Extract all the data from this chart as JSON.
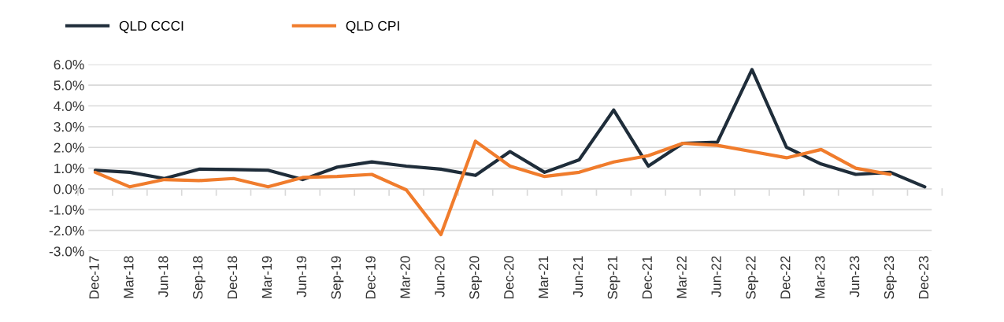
{
  "chart_data": {
    "type": "line",
    "categories": [
      "Dec-17",
      "Mar-18",
      "Jun-18",
      "Sep-18",
      "Dec-18",
      "Mar-19",
      "Jun-19",
      "Sep-19",
      "Dec-19",
      "Mar-20",
      "Jun-20",
      "Sep-20",
      "Dec-20",
      "Mar-21",
      "Jun-21",
      "Sep-21",
      "Dec-21",
      "Mar-22",
      "Jun-22",
      "Sep-22",
      "Dec-22",
      "Mar-23",
      "Jun-23",
      "Sep-23",
      "Dec-23"
    ],
    "series": [
      {
        "name": "QLD CCCI",
        "color": "#1f2d3a",
        "values": [
          0.9,
          0.8,
          0.5,
          0.95,
          0.93,
          0.9,
          0.45,
          1.05,
          1.3,
          1.1,
          0.95,
          0.65,
          1.8,
          0.8,
          1.4,
          3.8,
          1.1,
          2.2,
          2.25,
          5.75,
          2.0,
          1.2,
          0.7,
          0.8,
          0.1
        ]
      },
      {
        "name": "QLD CPI",
        "color": "#f07c2c",
        "values": [
          0.8,
          0.1,
          0.45,
          0.4,
          0.5,
          0.1,
          0.55,
          0.6,
          0.7,
          -0.05,
          -2.2,
          2.3,
          1.1,
          0.6,
          0.8,
          1.3,
          1.6,
          2.2,
          2.1,
          1.8,
          1.5,
          1.9,
          1.0,
          0.7,
          null
        ]
      }
    ],
    "ylim": [
      -3.0,
      6.0
    ],
    "yticks": [
      {
        "value": -3,
        "label": "-3.0%"
      },
      {
        "value": -2,
        "label": "-2.0%"
      },
      {
        "value": -1,
        "label": "-1.0%"
      },
      {
        "value": 0,
        "label": "0.0%"
      },
      {
        "value": 1,
        "label": "1.0%"
      },
      {
        "value": 2,
        "label": "2.0%"
      },
      {
        "value": 3,
        "label": "3.0%"
      },
      {
        "value": 4,
        "label": "4.0%"
      },
      {
        "value": 5,
        "label": "5.0%"
      },
      {
        "value": 6,
        "label": "6.0%"
      }
    ],
    "grid": "y",
    "legend": "top left",
    "marker": "none",
    "line_style": "solid"
  }
}
